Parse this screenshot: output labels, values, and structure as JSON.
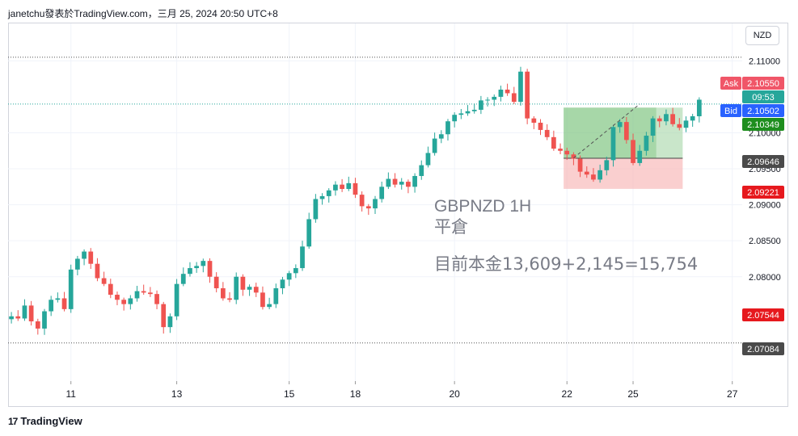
{
  "header": {
    "attribution": "janetchu發表於TradingView.com，三月 25, 2024 20:50 UTC+8"
  },
  "footer": {
    "brand": "TradingView",
    "logo_glyph": "17"
  },
  "currency_button": "NZD",
  "colors": {
    "up": "#26a69a",
    "down": "#ef5350",
    "profit_zone": "#a5d6a7",
    "loss_zone": "#f7b5b5",
    "ask": "#f05668",
    "bid": "#2962ff",
    "green_label": "#1e8e1e",
    "red_label": "#e6191e",
    "gray_label": "#4a4a4a",
    "countdown": "#26a69a",
    "text_gray": "#787b86"
  },
  "chart_data": {
    "type": "candlestick",
    "symbol_text": "GBPNZD 1H",
    "status_text": "平倉",
    "note_text": "目前本金13,609+2,145=15,754",
    "ylim": [
      2.0655,
      2.1152
    ],
    "y_ticks": [
      {
        "value": 2.11,
        "label": "2.11000"
      },
      {
        "value": 2.1,
        "label": "2.10000"
      },
      {
        "value": 2.095,
        "label": "2.09500"
      },
      {
        "value": 2.09,
        "label": "2.09000"
      },
      {
        "value": 2.085,
        "label": "2.08500"
      },
      {
        "value": 2.08,
        "label": "2.08000"
      }
    ],
    "x_ticks": [
      {
        "label": "11",
        "index": 9
      },
      {
        "label": "13",
        "index": 25
      },
      {
        "label": "15",
        "index": 42
      },
      {
        "label": "18",
        "index": 52
      },
      {
        "label": "20",
        "index": 67
      },
      {
        "label": "22",
        "index": 84
      },
      {
        "label": "25",
        "index": 94
      },
      {
        "label": "27",
        "index": 109
      }
    ],
    "x_slots": 111,
    "closes": [
      2.0745,
      2.0742,
      2.076,
      2.0738,
      2.0728,
      2.0752,
      2.0768,
      2.077,
      2.0755,
      2.081,
      2.0825,
      2.0835,
      2.0818,
      2.0798,
      2.079,
      2.0775,
      2.0768,
      2.0762,
      2.077,
      2.078,
      2.0778,
      2.0776,
      2.0762,
      2.073,
      2.0745,
      2.079,
      2.0804,
      2.0812,
      2.0815,
      2.0822,
      2.08,
      2.0784,
      2.077,
      2.0768,
      2.08,
      2.0782,
      2.0786,
      2.0778,
      2.0758,
      2.0762,
      2.0784,
      2.0796,
      2.0805,
      2.0812,
      2.0842,
      2.088,
      2.0908,
      2.0912,
      2.092,
      2.0928,
      2.0922,
      2.093,
      2.0914,
      2.0898,
      2.0895,
      2.0908,
      2.0925,
      2.0936,
      2.0928,
      2.0932,
      2.0925,
      2.094,
      2.0955,
      2.0972,
      2.0992,
      2.0998,
      2.1016,
      2.1025,
      2.1027,
      2.103,
      2.1032,
      2.1045,
      2.1046,
      2.105,
      2.106,
      2.1055,
      2.1043,
      2.1085,
      2.102,
      2.1014,
      2.1004,
      2.0994,
      2.0978,
      2.0975,
      2.097,
      2.0964,
      2.0946,
      2.0942,
      2.0935,
      2.0948,
      2.0962,
      2.1008,
      2.1015,
      2.099,
      2.0958,
      2.0975,
      2.0996,
      2.102,
      2.1016,
      2.1026,
      2.1012,
      2.1007,
      2.1017,
      2.1023,
      2.1046
    ],
    "trade_box": {
      "start_index": 84,
      "end_index": 102,
      "entry": 2.09646,
      "target": 2.1035,
      "stop": 2.09221
    },
    "dotted_levels": [
      2.1105,
      2.0708,
      2.104
    ],
    "dashed_trend": {
      "from_index": 85,
      "from_value": 2.0965,
      "to_index": 95,
      "to_value": 2.104
    },
    "price_labels": [
      {
        "tag": "Ask",
        "value": "2.10550",
        "kind": "ask"
      },
      {
        "tag": "",
        "value": "09:53",
        "kind": "countdown"
      },
      {
        "tag": "Bid",
        "value": "2.10502",
        "kind": "bid"
      },
      {
        "tag": "",
        "value": "2.10349",
        "kind": "green"
      },
      {
        "tag": "",
        "value": "2.09646",
        "kind": "gray"
      },
      {
        "tag": "",
        "value": "2.09221",
        "kind": "red"
      },
      {
        "tag": "",
        "value": "2.07544",
        "kind": "red"
      },
      {
        "tag": "",
        "value": "2.07084",
        "kind": "gray"
      }
    ]
  }
}
